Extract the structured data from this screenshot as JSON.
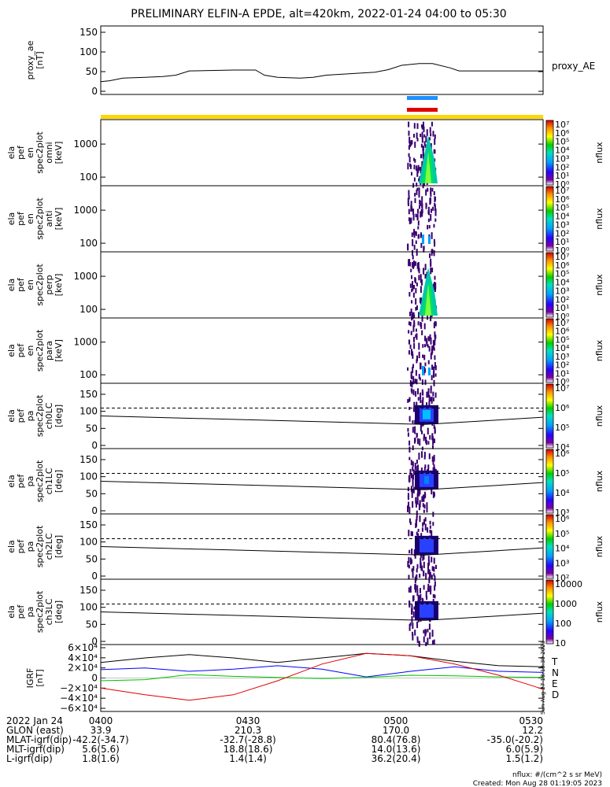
{
  "title": "PRELIMINARY ELFIN-A EPDE, alt=420km, 2022-01-24 04:00 to 05:30",
  "colors": {
    "axis": "#000000",
    "fgm_T": "#000000",
    "fgm_N": "#0000ff",
    "fgm_E": "#00c000",
    "fgm_D": "#e00000",
    "bar_blue": "#1e90ff",
    "bar_red": "#e00000",
    "bar_yellow": "#ffd700"
  },
  "chart_data": [
    {
      "type": "line",
      "ylabel": [
        "proxy_ae",
        "[nT]"
      ],
      "yticks": [
        "150",
        "100",
        "50",
        "0"
      ],
      "ylim": [
        0,
        160
      ],
      "legend": "proxy_AE",
      "series": [
        {
          "name": "proxy_AE",
          "x": [
            0,
            2,
            5,
            10,
            14,
            17,
            20,
            30,
            35,
            37,
            40,
            45,
            48,
            51,
            62,
            65,
            68,
            72,
            75,
            79,
            81,
            85,
            100
          ],
          "values": [
            30,
            32,
            38,
            40,
            42,
            45,
            55,
            57,
            57,
            45,
            40,
            38,
            40,
            45,
            52,
            58,
            68,
            72,
            72,
            62,
            55,
            55,
            55
          ]
        }
      ]
    },
    {
      "type": "heatmap",
      "ylabel": [
        "ela",
        "pef",
        "en",
        "spec2plot",
        "omni",
        "[keV]"
      ],
      "yticks": [
        "1000",
        "100"
      ],
      "zlabel": "nflux",
      "zticks": [
        "10⁷",
        "10⁶",
        "10⁵",
        "10⁴",
        "10³",
        "10²",
        "10¹",
        "10⁰"
      ]
    },
    {
      "type": "heatmap",
      "ylabel": [
        "ela",
        "pef",
        "en",
        "spec2plot",
        "anti",
        "[keV]"
      ],
      "yticks": [
        "1000",
        "100"
      ],
      "zlabel": "nflux",
      "zticks": [
        "10⁷",
        "10⁶",
        "10⁵",
        "10⁴",
        "10³",
        "10²",
        "10¹",
        "10⁰"
      ]
    },
    {
      "type": "heatmap",
      "ylabel": [
        "ela",
        "pef",
        "en",
        "spec2plot",
        "perp",
        "[keV]"
      ],
      "yticks": [
        "1000",
        "100"
      ],
      "zlabel": "nflux",
      "zticks": [
        "10⁷",
        "10⁶",
        "10⁵",
        "10⁴",
        "10³",
        "10²",
        "10¹",
        "10⁰"
      ]
    },
    {
      "type": "heatmap",
      "ylabel": [
        "ela",
        "pef",
        "en",
        "spec2plot",
        "para",
        "[keV]"
      ],
      "yticks": [
        "1000",
        "100"
      ],
      "zlabel": "nflux",
      "zticks": [
        "10⁷",
        "10⁶",
        "10⁵",
        "10⁴",
        "10³",
        "10²",
        "10¹",
        "10⁰"
      ]
    },
    {
      "type": "heatmap",
      "ylabel": [
        "ela",
        "pef",
        "pa",
        "spec2plot",
        "ch0LC",
        "[deg]"
      ],
      "yticks": [
        "150",
        "100",
        "50",
        "0"
      ],
      "zlabel": "nflux",
      "zticks": [
        "10⁷",
        "10⁶",
        "10⁵",
        "10⁴"
      ]
    },
    {
      "type": "heatmap",
      "ylabel": [
        "ela",
        "pef",
        "pa",
        "spec2plot",
        "ch1LC",
        "[deg]"
      ],
      "yticks": [
        "150",
        "100",
        "50",
        "0"
      ],
      "zlabel": "nflux",
      "zticks": [
        "10⁶",
        "10⁵",
        "10⁴",
        "10³"
      ]
    },
    {
      "type": "heatmap",
      "ylabel": [
        "ela",
        "pef",
        "pa",
        "spec2plot",
        "ch2LC",
        "[deg]"
      ],
      "yticks": [
        "150",
        "100",
        "50",
        "0"
      ],
      "zlabel": "nflux",
      "zticks": [
        "10⁶",
        "10⁵",
        "10⁴",
        "10³",
        "10²"
      ]
    },
    {
      "type": "heatmap",
      "ylabel": [
        "ela",
        "pef",
        "pa",
        "spec2plot",
        "ch3LC",
        "[deg]"
      ],
      "yticks": [
        "150",
        "100",
        "50",
        "0"
      ],
      "zlabel": "nflux",
      "zticks": [
        "10000",
        "1000",
        "100",
        "10"
      ]
    },
    {
      "type": "line",
      "ylabel": [
        "IGRF",
        "[nT]"
      ],
      "yticks": [
        "6×10⁴",
        "4×10⁴",
        "2×10⁴",
        "0",
        "−2×10⁴",
        "−4×10⁴",
        "−6×10⁴"
      ],
      "ylim": [
        -60000,
        60000
      ],
      "legend": [
        "T",
        "N",
        "E",
        "D"
      ],
      "series": [
        {
          "name": "T",
          "x": [
            0,
            10,
            20,
            30,
            40,
            50,
            60,
            70,
            80,
            90,
            100
          ],
          "values": [
            28000,
            36000,
            42000,
            36000,
            28000,
            36000,
            44000,
            40000,
            30000,
            22000,
            20000
          ]
        },
        {
          "name": "N",
          "x": [
            0,
            10,
            20,
            30,
            40,
            50,
            60,
            70,
            80,
            90,
            100
          ],
          "values": [
            15000,
            18000,
            12000,
            16000,
            22000,
            16000,
            2000,
            12000,
            20000,
            12000,
            10000
          ]
        },
        {
          "name": "E",
          "x": [
            0,
            10,
            20,
            30,
            40,
            50,
            60,
            70,
            80,
            90,
            100
          ],
          "values": [
            -5000,
            -3000,
            6000,
            3000,
            1000,
            -1000,
            1000,
            5000,
            4000,
            2000,
            1000
          ]
        },
        {
          "name": "D",
          "x": [
            0,
            10,
            20,
            30,
            40,
            50,
            60,
            70,
            80,
            90,
            100
          ],
          "values": [
            -18000,
            -30000,
            -40000,
            -30000,
            -5000,
            25000,
            44000,
            40000,
            25000,
            5000,
            -20000
          ]
        }
      ],
      "side_text": "Sun Aug 27 18:18:30 2023"
    }
  ],
  "axis_table": {
    "rows": [
      {
        "label": "2022 Jan 24",
        "values": [
          "0400",
          "0430",
          "0500",
          "0530"
        ]
      },
      {
        "label": "GLON (east)",
        "values": [
          "33.9",
          "210.3",
          "170.0",
          "12.2"
        ]
      },
      {
        "label": "MLAT-igrf(dip)",
        "values": [
          "-42.2(-34.7)",
          "-32.7(-28.8)",
          "80.4(76.8)",
          "-35.0(-20.2)"
        ]
      },
      {
        "label": "MLT-igrf(dip)",
        "values": [
          "5.6(5.6)",
          "18.8(18.6)",
          "14.0(13.6)",
          "6.0(5.9)"
        ]
      },
      {
        "label": "L-igrf(dip)",
        "values": [
          "1.8(1.6)",
          "1.4(1.4)",
          "36.2(20.4)",
          "1.5(1.2)"
        ]
      }
    ]
  },
  "footer": {
    "units": "nflux: #/(cm^2 s sr MeV)",
    "created": "Created: Mon Aug 28 01:19:05 2023"
  }
}
